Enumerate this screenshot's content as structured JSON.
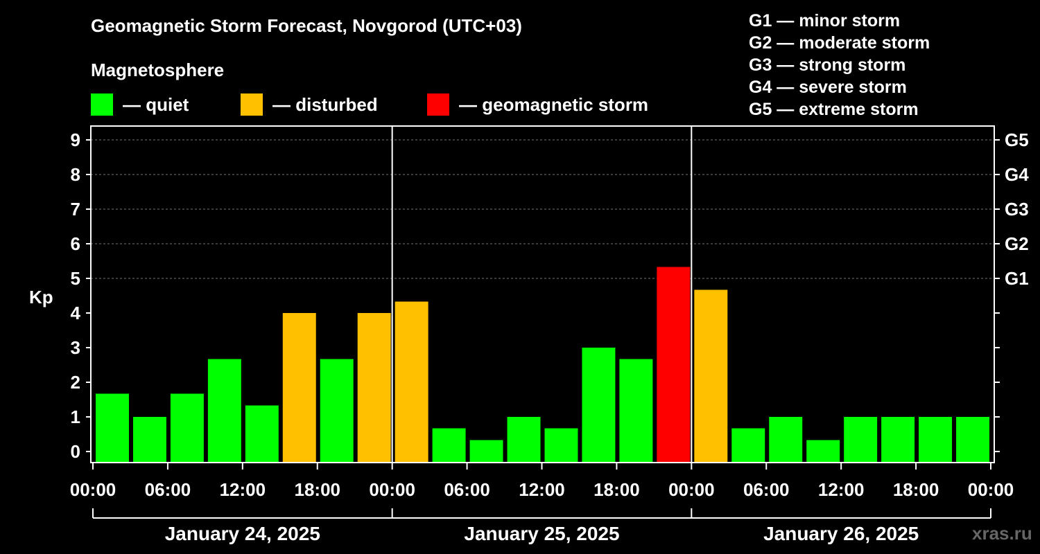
{
  "title": "Geomagnetic Storm Forecast, Novgorod (UTC+03)",
  "magnetosphere_label": "Magnetosphere",
  "legend": [
    {
      "label": "— quiet",
      "color": "#00ff00"
    },
    {
      "label": "— disturbed",
      "color": "#ffc000"
    },
    {
      "label": "— geomagnetic storm",
      "color": "#ff0000"
    }
  ],
  "g_scale": [
    "G1 — minor storm",
    "G2 — moderate storm",
    "G3 — strong storm",
    "G4 — severe storm",
    "G5 — extreme storm"
  ],
  "watermark": "xras.ru",
  "chart_data": {
    "type": "bar",
    "ylabel": "Kp",
    "ylim": [
      0,
      9
    ],
    "y_ticks": [
      "0",
      "1",
      "2",
      "3",
      "4",
      "5",
      "6",
      "7",
      "8",
      "9"
    ],
    "right_ticks": [
      {
        "value": 5,
        "label": "G1"
      },
      {
        "value": 6,
        "label": "G2"
      },
      {
        "value": 7,
        "label": "G3"
      },
      {
        "value": 8,
        "label": "G4"
      },
      {
        "value": 9,
        "label": "G5"
      }
    ],
    "x_tick_labels": [
      "00:00",
      "06:00",
      "12:00",
      "18:00",
      "00:00",
      "06:00",
      "12:00",
      "18:00",
      "00:00",
      "06:00",
      "12:00",
      "18:00",
      "00:00"
    ],
    "days": [
      "January 24, 2025",
      "January 25, 2025",
      "January 26, 2025"
    ],
    "interval_hours": 3,
    "grid": "horizontal dashed at 5-9",
    "colors": {
      "quiet": "#00ff00",
      "disturbed": "#ffc000",
      "storm": "#ff0000"
    },
    "values": [
      1.67,
      1.0,
      1.67,
      2.67,
      1.33,
      4.0,
      2.67,
      4.0,
      4.33,
      0.67,
      0.33,
      1.0,
      0.67,
      3.0,
      2.67,
      5.33,
      4.67,
      0.67,
      1.0,
      0.33,
      1.0,
      1.0,
      1.0,
      1.0
    ],
    "levels": [
      "quiet",
      "quiet",
      "quiet",
      "quiet",
      "quiet",
      "disturbed",
      "quiet",
      "disturbed",
      "disturbed",
      "quiet",
      "quiet",
      "quiet",
      "quiet",
      "quiet",
      "quiet",
      "storm",
      "disturbed",
      "quiet",
      "quiet",
      "quiet",
      "quiet",
      "quiet",
      "quiet",
      "quiet"
    ]
  }
}
